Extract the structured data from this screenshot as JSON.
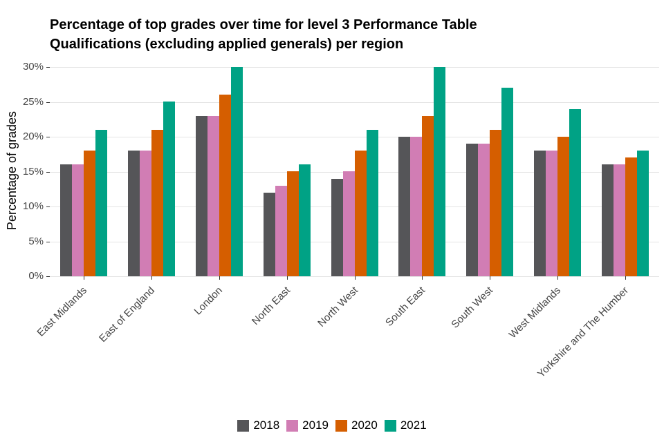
{
  "header": {
    "title_line1": "Percentage of top grades over time for level 3 Performance Table",
    "title_line2": "Qualifications (excluding applied generals) per region"
  },
  "chart_data": {
    "type": "bar",
    "title": "Percentage of top grades over time for level 3 Performance Table Qualifications (excluding applied generals) per region",
    "xlabel": "",
    "ylabel": "Percentage of grades",
    "ylim": [
      0,
      30
    ],
    "grid": true,
    "legend_position": "bottom",
    "y_ticks": [
      0,
      5,
      10,
      15,
      20,
      25,
      30
    ],
    "y_tick_labels": [
      "0%",
      "5%",
      "10%",
      "15%",
      "20%",
      "25%",
      "30%"
    ],
    "categories": [
      "East Midlands",
      "East of England",
      "London",
      "North East",
      "North West",
      "South East",
      "South West",
      "West Midlands",
      "Yorkshire and The Humber"
    ],
    "series": [
      {
        "name": "2018",
        "color": "#555558",
        "values": [
          16,
          18,
          23,
          12,
          14,
          20,
          19,
          18,
          16
        ]
      },
      {
        "name": "2019",
        "color": "#D17DB4",
        "values": [
          16,
          18,
          23,
          13,
          15,
          20,
          19,
          18,
          16
        ]
      },
      {
        "name": "2020",
        "color": "#D55E00",
        "values": [
          18,
          21,
          26,
          15,
          18,
          23,
          21,
          20,
          17
        ]
      },
      {
        "name": "2021",
        "color": "#00A285",
        "values": [
          21,
          25,
          30,
          16,
          21,
          30,
          27,
          24,
          18
        ]
      }
    ]
  },
  "colors": {
    "gridline": "#E4E4E4",
    "tick_mark": "#333333",
    "tick_text": "#454545"
  }
}
